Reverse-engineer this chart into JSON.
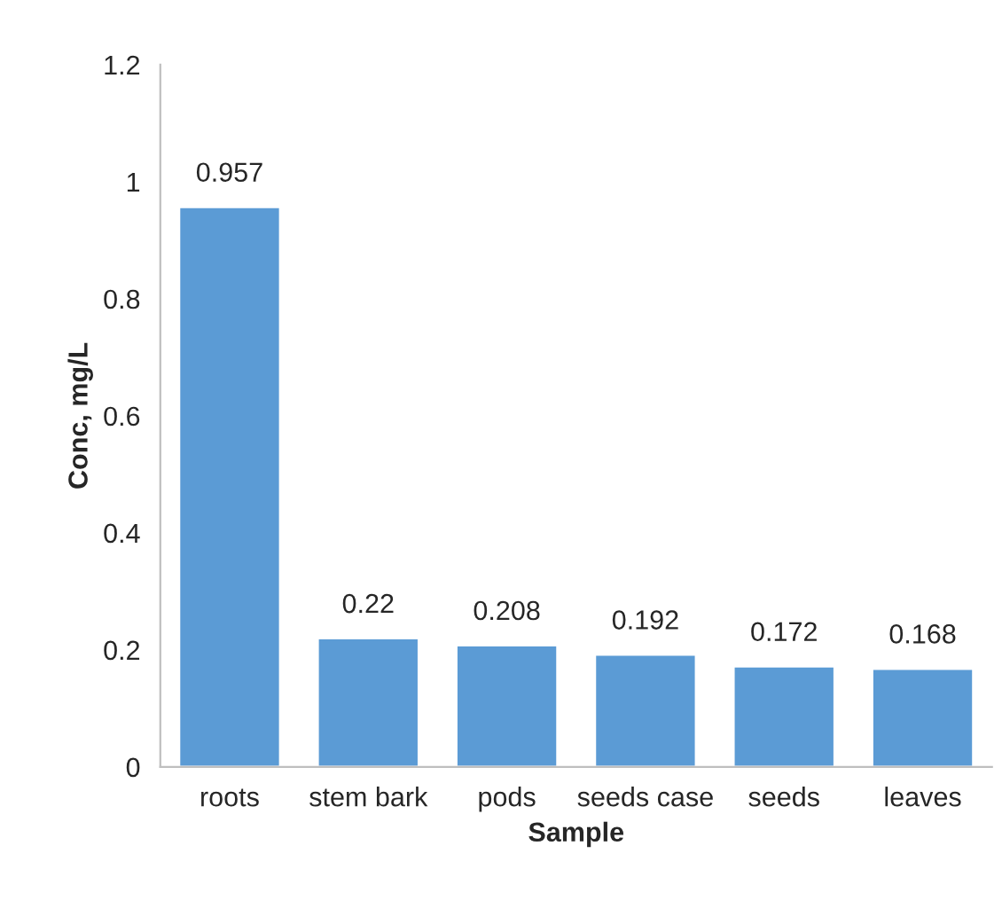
{
  "chart_data": {
    "type": "bar",
    "xlabel": "Sample",
    "ylabel": "Conc, mg/L",
    "categories": [
      "roots",
      "stem bark",
      "pods",
      "seeds case",
      "seeds",
      "leaves"
    ],
    "values": [
      0.957,
      0.22,
      0.208,
      0.192,
      0.172,
      0.168
    ],
    "color": "#5b9bd5",
    "ylim": [
      0,
      1.2
    ],
    "yticks": [
      0,
      0.2,
      0.4,
      0.6,
      0.8,
      1,
      1.2
    ],
    "grid": false,
    "data_labels": true
  }
}
